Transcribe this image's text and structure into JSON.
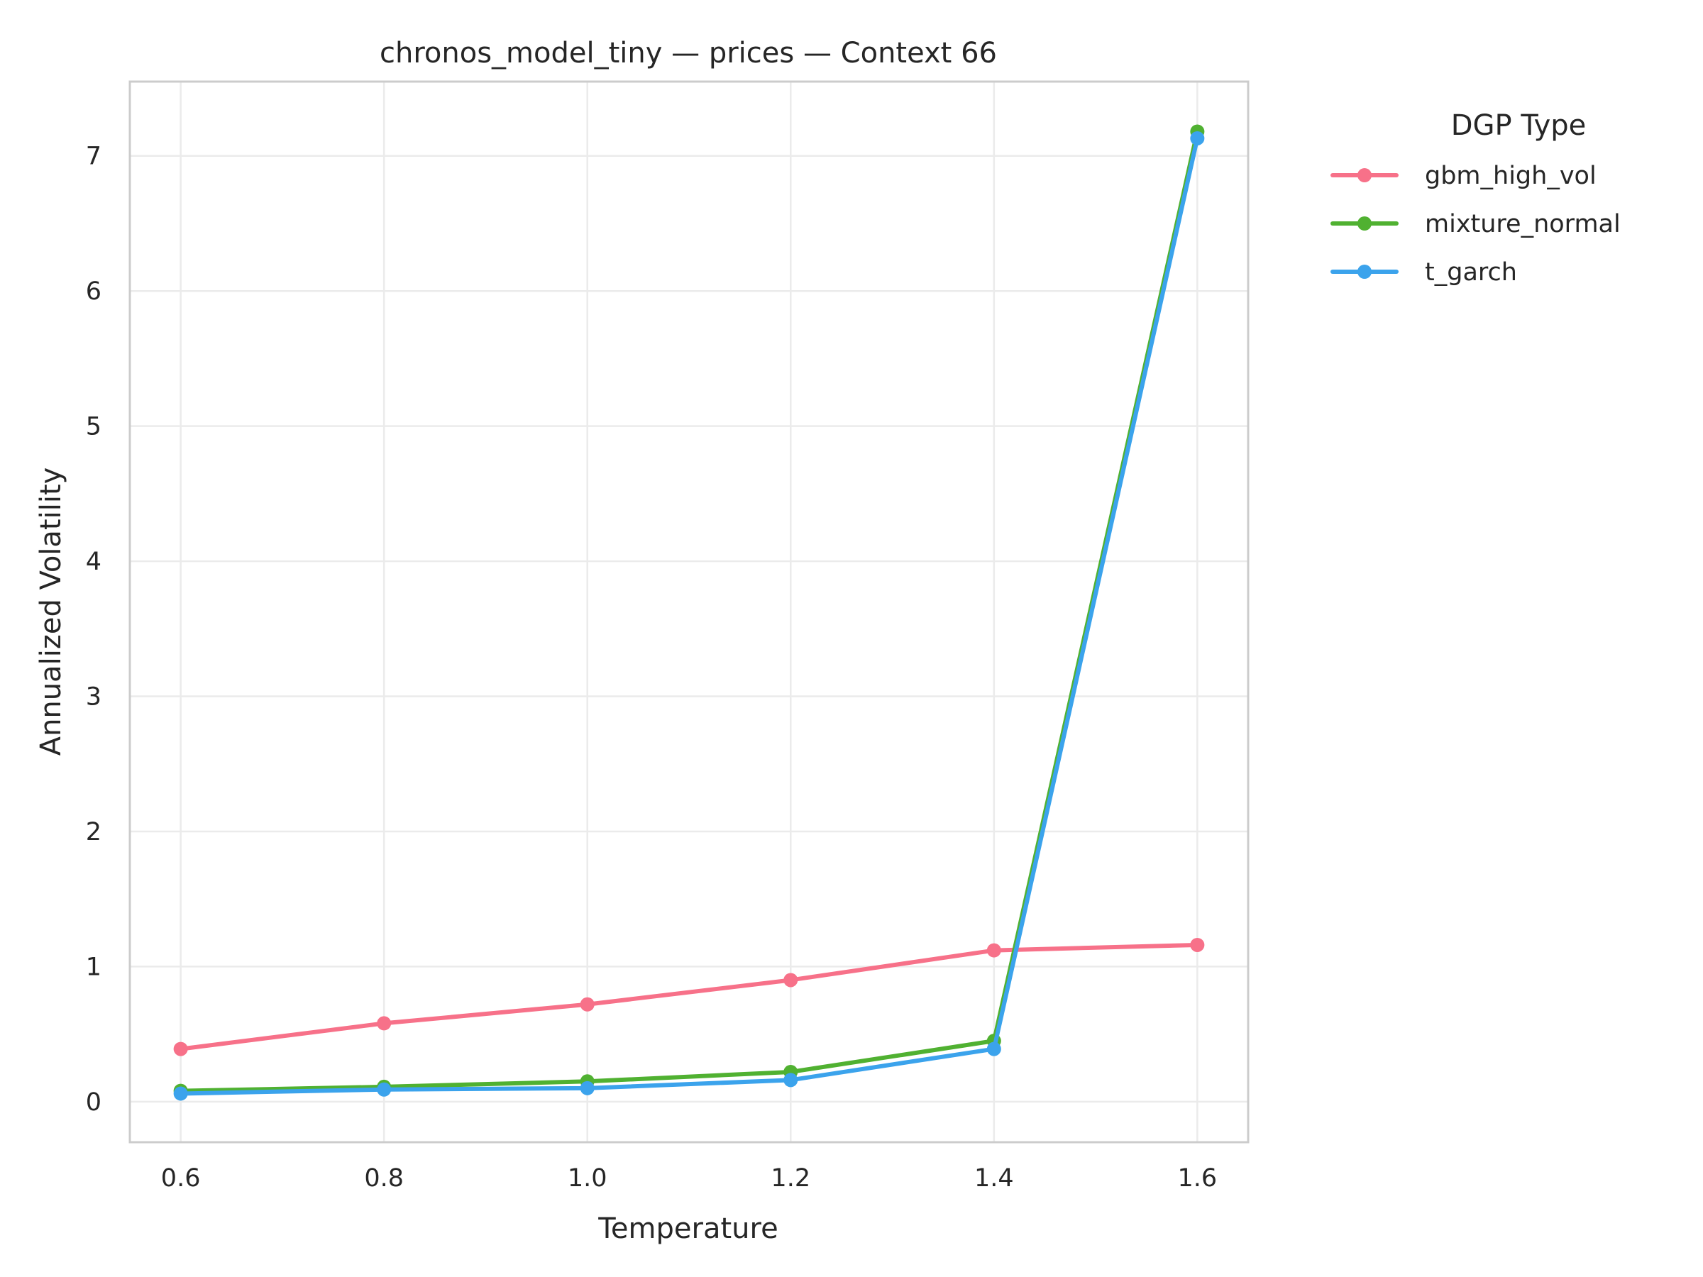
{
  "chart_data": {
    "type": "line",
    "title": "chronos_model_tiny — prices — Context 66",
    "xlabel": "Temperature",
    "ylabel": "Annualized Volatility",
    "x": [
      0.6,
      0.8,
      1.0,
      1.2,
      1.4,
      1.6
    ],
    "x_ticks": [
      "0.6",
      "0.8",
      "1.0",
      "1.2",
      "1.4",
      "1.6"
    ],
    "y_ticks": [
      "0",
      "1",
      "2",
      "3",
      "4",
      "5",
      "6",
      "7"
    ],
    "xlim": [
      0.55,
      1.65
    ],
    "ylim": [
      -0.3,
      7.55
    ],
    "grid": true,
    "legend": {
      "title": "DGP Type",
      "placement": "outside-right"
    },
    "series": [
      {
        "name": "gbm_high_vol",
        "color": "#f77189",
        "values": [
          0.39,
          0.58,
          0.72,
          0.9,
          1.12,
          1.16
        ]
      },
      {
        "name": "mixture_normal",
        "color": "#50b131",
        "values": [
          0.08,
          0.11,
          0.15,
          0.22,
          0.45,
          7.18
        ]
      },
      {
        "name": "t_garch",
        "color": "#3ba3ec",
        "values": [
          0.06,
          0.09,
          0.1,
          0.16,
          0.39,
          7.13
        ]
      }
    ]
  }
}
